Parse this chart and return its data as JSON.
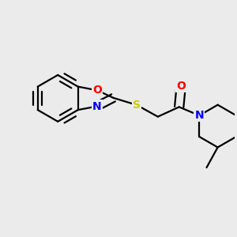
{
  "bg_color": "#ebebeb",
  "bond_color": "#000000",
  "bond_width": 1.6,
  "atom_colors": {
    "O": "#ff0000",
    "N": "#0000ff",
    "S": "#cccc00",
    "C": "#000000"
  },
  "font_size_hetero": 10,
  "title": "",
  "xlim": [
    -0.1,
    1.05
  ],
  "ylim": [
    0.05,
    0.95
  ]
}
